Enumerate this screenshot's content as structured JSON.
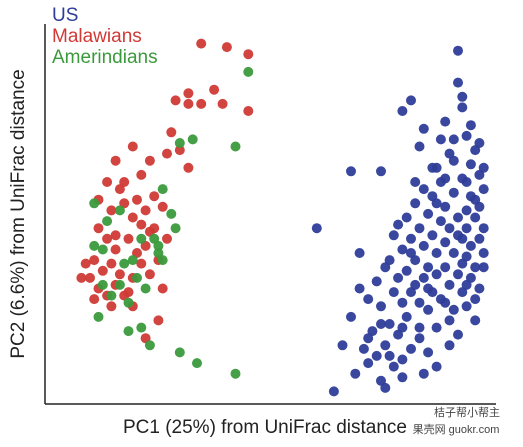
{
  "chart_data": {
    "type": "scatter",
    "xlabel": "PC1 (25%) from UniFrac distance",
    "ylabel": "PC2 (6.6%) from UniFrac distance",
    "xlim": [
      0,
      1
    ],
    "ylim": [
      0,
      1
    ],
    "grid": false,
    "legend_position": "top-left",
    "series": [
      {
        "name": "US",
        "color": "#2e3d99",
        "points": [
          [
            0.68,
            0.63
          ],
          [
            0.75,
            0.63
          ],
          [
            0.8,
            0.8
          ],
          [
            0.82,
            0.83
          ],
          [
            0.84,
            0.7
          ],
          [
            0.85,
            0.75
          ],
          [
            0.88,
            0.64
          ],
          [
            0.9,
            0.77
          ],
          [
            0.9,
            0.61
          ],
          [
            0.91,
            0.68
          ],
          [
            0.92,
            0.72
          ],
          [
            0.93,
            0.97
          ],
          [
            0.93,
            0.88
          ],
          [
            0.94,
            0.81
          ],
          [
            0.94,
            0.84
          ],
          [
            0.95,
            0.73
          ],
          [
            0.95,
            0.6
          ],
          [
            0.95,
            0.52
          ],
          [
            0.96,
            0.65
          ],
          [
            0.96,
            0.76
          ],
          [
            0.97,
            0.55
          ],
          [
            0.97,
            0.69
          ],
          [
            0.98,
            0.62
          ],
          [
            0.98,
            0.71
          ],
          [
            0.99,
            0.64
          ],
          [
            0.99,
            0.58
          ],
          [
            0.6,
            0.47
          ],
          [
            0.66,
            0.14
          ],
          [
            0.68,
            0.22
          ],
          [
            0.7,
            0.3
          ],
          [
            0.72,
            0.27
          ],
          [
            0.72,
            0.09
          ],
          [
            0.73,
            0.18
          ],
          [
            0.74,
            0.32
          ],
          [
            0.75,
            0.25
          ],
          [
            0.75,
            0.04
          ],
          [
            0.76,
            0.36
          ],
          [
            0.76,
            0.14
          ],
          [
            0.77,
            0.2
          ],
          [
            0.77,
            0.38
          ],
          [
            0.78,
            0.29
          ],
          [
            0.78,
            0.08
          ],
          [
            0.79,
            0.33
          ],
          [
            0.79,
            0.17
          ],
          [
            0.8,
            0.41
          ],
          [
            0.8,
            0.26
          ],
          [
            0.8,
            0.1
          ],
          [
            0.81,
            0.5
          ],
          [
            0.81,
            0.35
          ],
          [
            0.81,
            0.22
          ],
          [
            0.82,
            0.44
          ],
          [
            0.82,
            0.13
          ],
          [
            0.82,
            0.29
          ],
          [
            0.83,
            0.54
          ],
          [
            0.83,
            0.38
          ],
          [
            0.84,
            0.26
          ],
          [
            0.84,
            0.47
          ],
          [
            0.84,
            0.19
          ],
          [
            0.85,
            0.33
          ],
          [
            0.85,
            0.58
          ],
          [
            0.85,
            0.42
          ],
          [
            0.86,
            0.51
          ],
          [
            0.86,
            0.24
          ],
          [
            0.86,
            0.36
          ],
          [
            0.87,
            0.45
          ],
          [
            0.87,
            0.29
          ],
          [
            0.87,
            0.56
          ],
          [
            0.88,
            0.4
          ],
          [
            0.88,
            0.19
          ],
          [
            0.88,
            0.34
          ],
          [
            0.89,
            0.49
          ],
          [
            0.89,
            0.27
          ],
          [
            0.89,
            0.6
          ],
          [
            0.9,
            0.43
          ],
          [
            0.9,
            0.36
          ],
          [
            0.9,
            0.53
          ],
          [
            0.91,
            0.31
          ],
          [
            0.91,
            0.47
          ],
          [
            0.91,
            0.14
          ],
          [
            0.92,
            0.4
          ],
          [
            0.92,
            0.57
          ],
          [
            0.92,
            0.24
          ],
          [
            0.93,
            0.5
          ],
          [
            0.93,
            0.34
          ],
          [
            0.94,
            0.44
          ],
          [
            0.94,
            0.29
          ],
          [
            0.94,
            0.61
          ],
          [
            0.95,
            0.39
          ],
          [
            0.95,
            0.47
          ],
          [
            0.96,
            0.33
          ],
          [
            0.96,
            0.56
          ],
          [
            0.96,
            0.42
          ],
          [
            0.97,
            0.36
          ],
          [
            0.97,
            0.5
          ],
          [
            0.98,
            0.44
          ],
          [
            0.98,
            0.3
          ],
          [
            0.99,
            0.47
          ],
          [
            0.99,
            0.4
          ],
          [
            0.88,
            0.08
          ],
          [
            0.7,
            0.4
          ],
          [
            0.78,
            0.45
          ],
          [
            0.83,
            0.31
          ],
          [
            0.86,
            0.12
          ],
          [
            0.91,
            0.21
          ],
          [
            0.93,
            0.17
          ],
          [
            0.95,
            0.25
          ],
          [
            0.97,
            0.27
          ],
          [
            0.8,
            0.05
          ],
          [
            0.74,
            0.11
          ],
          [
            0.76,
            0.02
          ],
          [
            0.64,
            0.01
          ],
          [
            0.69,
            0.06
          ],
          [
            0.85,
            0.06
          ],
          [
            0.79,
            0.48
          ],
          [
            0.87,
            0.64
          ],
          [
            0.89,
            0.72
          ],
          [
            0.83,
            0.6
          ],
          [
            0.92,
            0.66
          ],
          [
            0.98,
            0.53
          ],
          [
            0.99,
            0.36
          ],
          [
            0.97,
            0.21
          ],
          [
            0.94,
            0.37
          ],
          [
            0.9,
            0.26
          ],
          [
            0.84,
            0.16
          ],
          [
            0.77,
            0.11
          ],
          [
            0.72,
            0.16
          ],
          [
            0.82,
            0.4
          ],
          [
            0.88,
            0.54
          ],
          [
            0.93,
            0.45
          ],
          [
            0.95,
            0.31
          ],
          [
            0.86,
            0.3
          ],
          [
            0.8,
            0.19
          ],
          [
            0.75,
            0.2
          ],
          [
            0.71,
            0.13
          ]
        ]
      },
      {
        "name": "Malawians",
        "color": "#d03a35",
        "points": [
          [
            0.39,
            0.98
          ],
          [
            0.44,
            0.96
          ],
          [
            0.33,
            0.99
          ],
          [
            0.27,
            0.83
          ],
          [
            0.3,
            0.85
          ],
          [
            0.33,
            0.82
          ],
          [
            0.3,
            0.82
          ],
          [
            0.38,
            0.82
          ],
          [
            0.36,
            0.86
          ],
          [
            0.44,
            0.8
          ],
          [
            0.26,
            0.74
          ],
          [
            0.28,
            0.69
          ],
          [
            0.25,
            0.68
          ],
          [
            0.3,
            0.64
          ],
          [
            0.13,
            0.66
          ],
          [
            0.17,
            0.7
          ],
          [
            0.21,
            0.66
          ],
          [
            0.19,
            0.62
          ],
          [
            0.11,
            0.6
          ],
          [
            0.14,
            0.58
          ],
          [
            0.09,
            0.55
          ],
          [
            0.12,
            0.52
          ],
          [
            0.15,
            0.54
          ],
          [
            0.17,
            0.5
          ],
          [
            0.2,
            0.52
          ],
          [
            0.22,
            0.56
          ],
          [
            0.24,
            0.53
          ],
          [
            0.19,
            0.48
          ],
          [
            0.21,
            0.46
          ],
          [
            0.09,
            0.47
          ],
          [
            0.11,
            0.44
          ],
          [
            0.13,
            0.41
          ],
          [
            0.16,
            0.44
          ],
          [
            0.08,
            0.38
          ],
          [
            0.1,
            0.35
          ],
          [
            0.12,
            0.37
          ],
          [
            0.14,
            0.34
          ],
          [
            0.07,
            0.33
          ],
          [
            0.09,
            0.3
          ],
          [
            0.11,
            0.28
          ],
          [
            0.13,
            0.31
          ],
          [
            0.15,
            0.28
          ],
          [
            0.17,
            0.33
          ],
          [
            0.19,
            0.37
          ],
          [
            0.21,
            0.34
          ],
          [
            0.23,
            0.38
          ],
          [
            0.18,
            0.4
          ],
          [
            0.16,
            0.29
          ],
          [
            0.12,
            0.25
          ],
          [
            0.08,
            0.27
          ],
          [
            0.05,
            0.33
          ],
          [
            0.06,
            0.37
          ],
          [
            0.2,
            0.42
          ],
          [
            0.25,
            0.44
          ],
          [
            0.22,
            0.47
          ],
          [
            0.18,
            0.55
          ],
          [
            0.15,
            0.6
          ],
          [
            0.23,
            0.21
          ],
          [
            0.2,
            0.16
          ],
          [
            0.17,
            0.25
          ],
          [
            0.24,
            0.3
          ],
          [
            0.13,
            0.45
          ]
        ]
      },
      {
        "name": "Amerindians",
        "color": "#3b9a3c",
        "points": [
          [
            0.44,
            0.91
          ],
          [
            0.41,
            0.7
          ],
          [
            0.28,
            0.71
          ],
          [
            0.31,
            0.72
          ],
          [
            0.24,
            0.58
          ],
          [
            0.26,
            0.51
          ],
          [
            0.27,
            0.47
          ],
          [
            0.22,
            0.44
          ],
          [
            0.23,
            0.4
          ],
          [
            0.19,
            0.44
          ],
          [
            0.17,
            0.38
          ],
          [
            0.18,
            0.33
          ],
          [
            0.15,
            0.37
          ],
          [
            0.14,
            0.31
          ],
          [
            0.2,
            0.3
          ],
          [
            0.16,
            0.26
          ],
          [
            0.12,
            0.28
          ],
          [
            0.1,
            0.31
          ],
          [
            0.09,
            0.22
          ],
          [
            0.08,
            0.42
          ],
          [
            0.08,
            0.54
          ],
          [
            0.11,
            0.49
          ],
          [
            0.21,
            0.14
          ],
          [
            0.19,
            0.19
          ],
          [
            0.23,
            0.42
          ],
          [
            0.24,
            0.38
          ],
          [
            0.16,
            0.18
          ],
          [
            0.28,
            0.12
          ],
          [
            0.32,
            0.09
          ],
          [
            0.41,
            0.06
          ],
          [
            0.14,
            0.52
          ],
          [
            0.1,
            0.41
          ]
        ]
      }
    ]
  },
  "watermark": {
    "line1": "桔子帮小帮主",
    "line2": "果壳网 guokr.com"
  }
}
